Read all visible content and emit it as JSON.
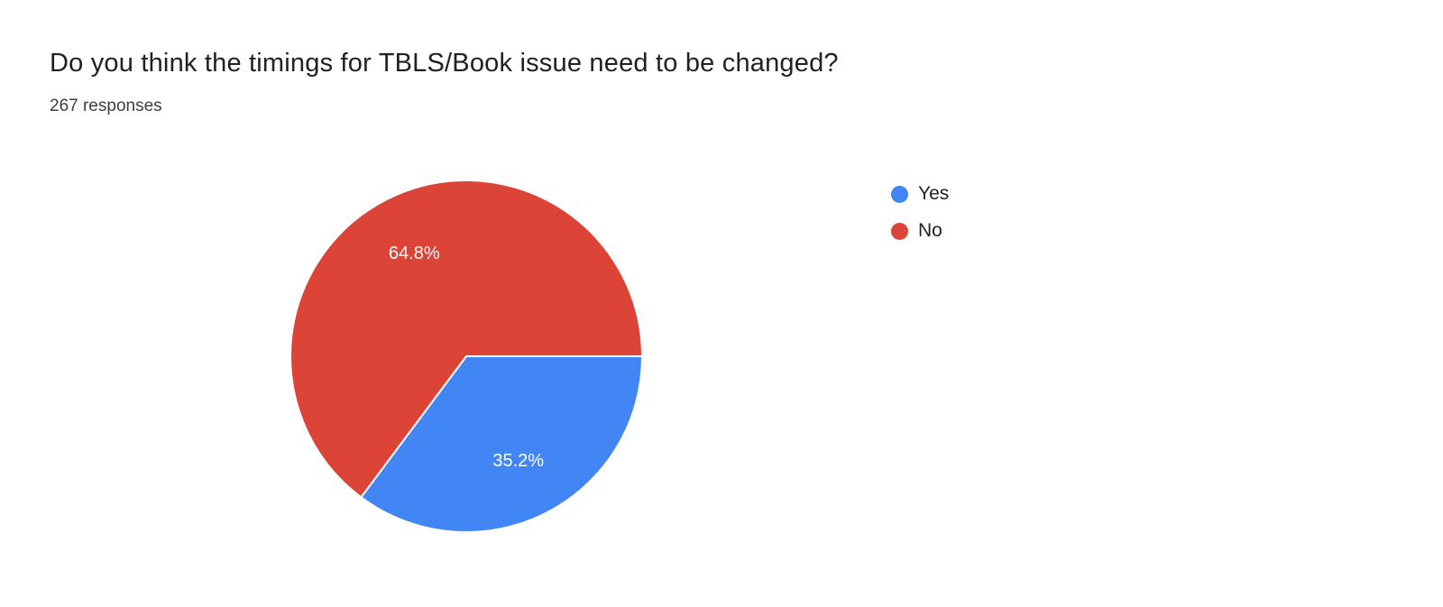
{
  "page": {
    "title": "Do you think the timings for TBLS/Book issue need to be changed?",
    "responses_label": "267 responses"
  },
  "chart_data": {
    "type": "pie",
    "title": "Do you think the timings for TBLS/Book issue need to be changed?",
    "subtitle": "267 responses",
    "series": [
      {
        "label": "Yes",
        "value": 35.2,
        "display": "35.2%",
        "color": "#4285f4"
      },
      {
        "label": "No",
        "value": 64.8,
        "display": "64.8%",
        "color": "#db4437"
      }
    ],
    "start_angle_deg": 0,
    "direction": "clockwise",
    "slice_border_color": "#ffffff",
    "data_label_color": "#ffffff",
    "legend_position": "right"
  },
  "legend": {
    "items": [
      {
        "label": "Yes",
        "color": "#4285f4"
      },
      {
        "label": "No",
        "color": "#db4437"
      }
    ]
  }
}
